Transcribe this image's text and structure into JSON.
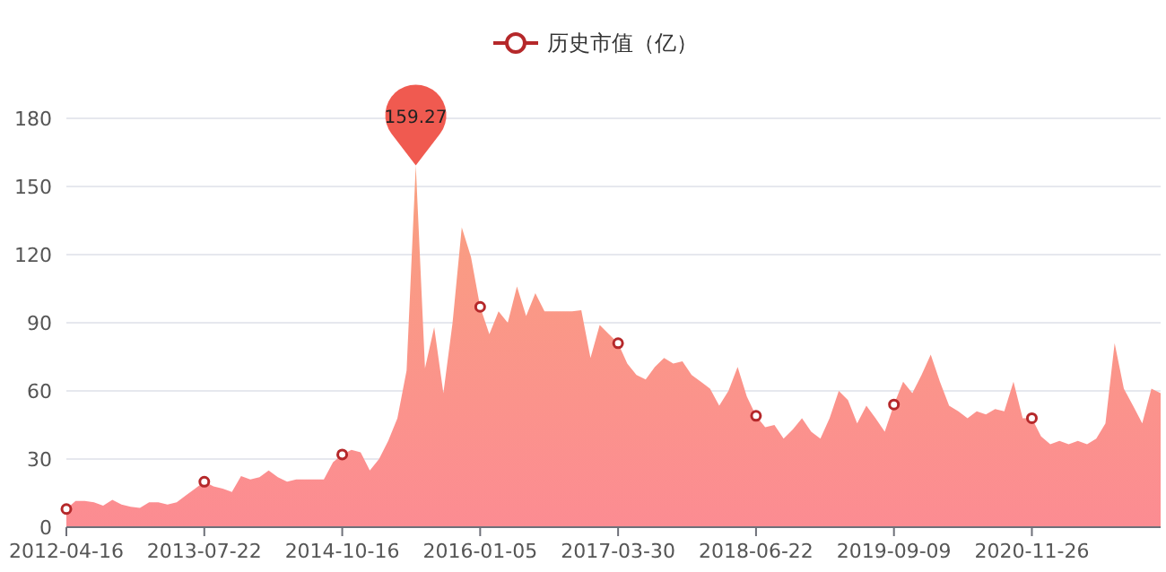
{
  "chart_data": {
    "type": "area",
    "categories": [
      "2012-04-16",
      null,
      null,
      null,
      null,
      null,
      null,
      null,
      null,
      null,
      null,
      null,
      null,
      null,
      null,
      "2013-07-22",
      null,
      null,
      null,
      null,
      null,
      null,
      null,
      null,
      null,
      null,
      null,
      null,
      null,
      null,
      "2014-10-16",
      null,
      null,
      null,
      null,
      null,
      null,
      null,
      null,
      null,
      null,
      null,
      null,
      null,
      null,
      "2016-01-05",
      null,
      null,
      null,
      null,
      null,
      null,
      null,
      null,
      null,
      null,
      null,
      null,
      null,
      null,
      "2017-03-30",
      null,
      null,
      null,
      null,
      null,
      null,
      null,
      null,
      null,
      null,
      null,
      null,
      null,
      null,
      "2018-06-22",
      null,
      null,
      null,
      null,
      null,
      null,
      null,
      null,
      null,
      null,
      null,
      null,
      null,
      null,
      "2019-09-09",
      null,
      null,
      null,
      null,
      null,
      null,
      null,
      null,
      null,
      null,
      null,
      null,
      null,
      null,
      "2020-11-26",
      null,
      null,
      null,
      null,
      null,
      null,
      null,
      null,
      null,
      null,
      null,
      null,
      null,
      null
    ],
    "series": [
      {
        "name": "历史市值（亿）",
        "color": "#fc8c92",
        "values": [
          8,
          11.5,
          11.5,
          11,
          9.5,
          12,
          10,
          9,
          8.5,
          11,
          11,
          10,
          11,
          14,
          17,
          20,
          18,
          17,
          15.5,
          22.5,
          21,
          22,
          25,
          22,
          20,
          21,
          21,
          21,
          21,
          28.6,
          32,
          34,
          33,
          25,
          30,
          38,
          48,
          69,
          159.27,
          70,
          88,
          59,
          90,
          132,
          119,
          97,
          85,
          95,
          90,
          106,
          93,
          103,
          95,
          95,
          95,
          95,
          95.5,
          74.5,
          89,
          85,
          81,
          72,
          67,
          65,
          70.6,
          74.5,
          72,
          73,
          67,
          64,
          61,
          53.5,
          60,
          70.6,
          57.5,
          49,
          44,
          45,
          39,
          43,
          48,
          42,
          39,
          48,
          60,
          56,
          45.7,
          53.5,
          48,
          42,
          54,
          64,
          59,
          67,
          76,
          64,
          53.5,
          51,
          48,
          51,
          49.6,
          52,
          51,
          64,
          48,
          48,
          40,
          36.5,
          38,
          36.5,
          38,
          36.5,
          39,
          45.7,
          81,
          61,
          53.5,
          45.7,
          61,
          59
        ],
        "value_labels": [
          null,
          null,
          null,
          null,
          null,
          null,
          null,
          null,
          null,
          null,
          null,
          null,
          null,
          null,
          null,
          null,
          null,
          null,
          null,
          null,
          null,
          null,
          null,
          null,
          null,
          null,
          null,
          null,
          null,
          null,
          null,
          null,
          null,
          null,
          null,
          null,
          null,
          null,
          "159.27",
          null,
          null,
          null,
          null,
          null,
          null,
          null,
          null,
          null,
          null,
          null,
          null,
          null,
          null,
          null,
          null,
          null,
          null,
          null,
          null,
          null,
          null,
          null,
          null,
          null,
          null,
          null,
          null,
          null,
          null,
          null,
          null,
          null,
          null,
          null,
          null,
          null,
          null,
          null,
          null,
          null,
          null,
          null,
          null,
          null,
          null,
          null,
          null,
          null,
          null,
          null,
          null,
          null,
          null,
          null,
          null,
          null,
          null,
          null,
          null,
          null,
          null,
          null,
          null,
          null,
          null,
          null,
          null,
          null,
          null,
          null,
          null,
          null,
          null,
          null,
          null,
          null,
          null,
          null,
          null,
          null
        ]
      },
      {
        "type": "scatter",
        "color": "#b5282a",
        "marker": "circle",
        "values": [
          8,
          null,
          null,
          null,
          null,
          null,
          null,
          null,
          null,
          null,
          null,
          null,
          null,
          null,
          null,
          20,
          null,
          null,
          null,
          null,
          null,
          null,
          null,
          null,
          null,
          null,
          null,
          null,
          null,
          null,
          32,
          null,
          null,
          null,
          null,
          null,
          null,
          null,
          null,
          null,
          null,
          null,
          null,
          null,
          null,
          97,
          null,
          null,
          null,
          null,
          null,
          null,
          null,
          null,
          null,
          null,
          null,
          null,
          null,
          null,
          81,
          null,
          null,
          null,
          null,
          null,
          null,
          null,
          null,
          null,
          null,
          null,
          null,
          null,
          null,
          49,
          null,
          null,
          null,
          null,
          null,
          null,
          null,
          null,
          null,
          null,
          null,
          null,
          null,
          null,
          54,
          null,
          null,
          null,
          null,
          null,
          null,
          null,
          null,
          null,
          null,
          null,
          null,
          null,
          null,
          48,
          null,
          null,
          null,
          null,
          null,
          null,
          null,
          null,
          null,
          null,
          null,
          null,
          null,
          null
        ]
      }
    ],
    "ylim": [
      0,
      180
    ],
    "yticks": [
      0,
      30,
      60,
      90,
      120,
      150,
      180
    ],
    "grid": "y",
    "legend": "top"
  }
}
